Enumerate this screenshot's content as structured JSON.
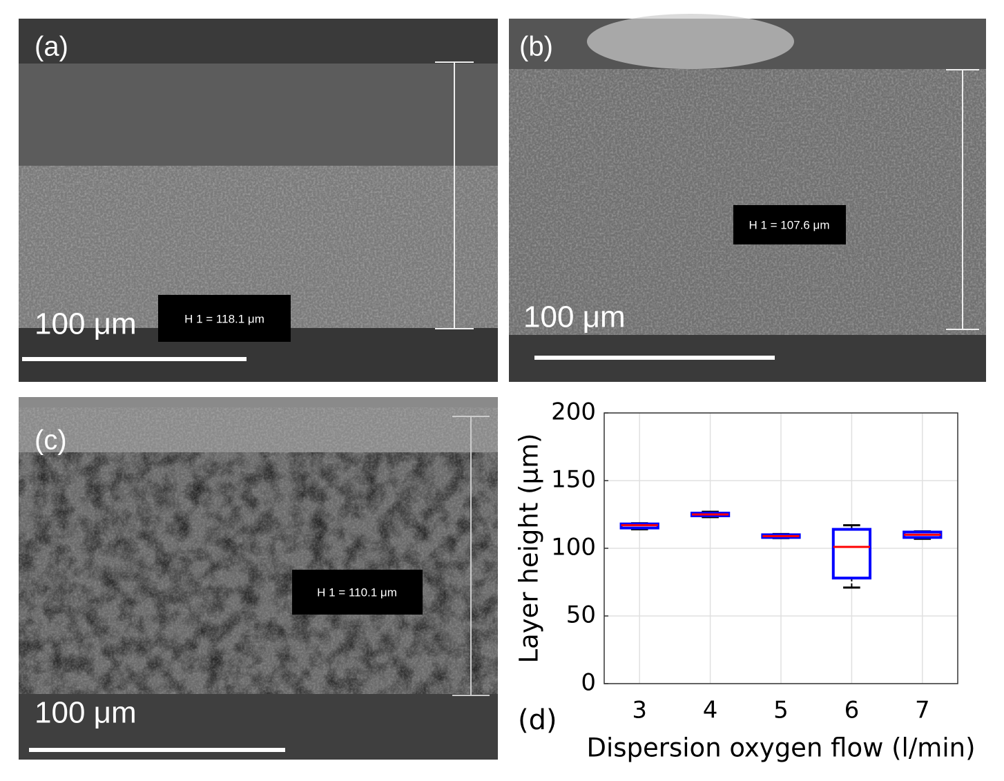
{
  "panels": [
    {
      "label": "(a)",
      "scale": "100 μm",
      "measure": "H 1 = 118.1 μm"
    },
    {
      "label": "(b)",
      "scale": "100 μm",
      "measure": "H 1 = 107.6 μm"
    },
    {
      "label": "(c)",
      "scale": "100 μm",
      "measure": "H 1 = 110.1 μm"
    }
  ],
  "chart_data": {
    "type": "box",
    "panel_label": "(d)",
    "x_label": "Dispersion oxygen flow (l/min)",
    "y_label": "Layer height (μm)",
    "categories": [
      "3",
      "4",
      "5",
      "6",
      "7"
    ],
    "boxes": [
      {
        "low": 114,
        "q1": 115,
        "median": 117,
        "q3": 118,
        "high": 118.5
      },
      {
        "low": 123,
        "q1": 124,
        "median": 125,
        "q3": 126,
        "high": 127
      },
      {
        "low": 107.5,
        "q1": 108,
        "median": 109,
        "q3": 110,
        "high": 110.5
      },
      {
        "low": 71,
        "q1": 78,
        "median": 101,
        "q3": 114,
        "high": 117
      },
      {
        "low": 107,
        "q1": 108,
        "median": 110,
        "q3": 112,
        "high": 112.5
      }
    ],
    "box_color": "#0000ff",
    "median_color": "#ff0000",
    "whisker_color": "#000000",
    "ylim": [
      0,
      200
    ],
    "yticks": [
      0,
      50,
      100,
      150,
      200
    ],
    "grid": true
  }
}
